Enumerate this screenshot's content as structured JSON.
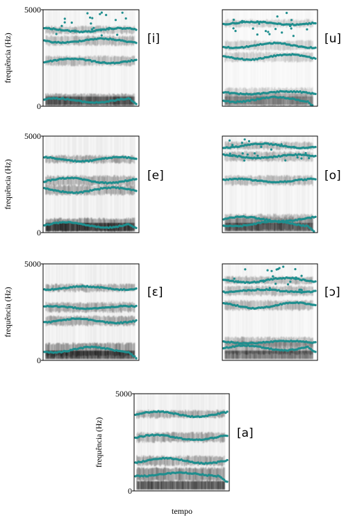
{
  "figure": {
    "xlabel": "tempo"
  },
  "chart_data": [
    {
      "type": "scatter",
      "vowel": "[i]",
      "xlabel": "",
      "ylabel": "frequência (Hz)",
      "yticks": [
        "0",
        "5000"
      ],
      "ylim": [
        0,
        5000
      ],
      "formants_hz": [
        300,
        2350,
        3400,
        3950
      ],
      "darkness": "medium",
      "formant_color": "#1f8e8e"
    },
    {
      "type": "scatter",
      "vowel": "[u]",
      "xlabel": "",
      "ylabel": "",
      "yticks": [],
      "ylim": [
        0,
        5000
      ],
      "formants_hz": [
        350,
        700,
        2550,
        3150,
        4300
      ],
      "darkness": "light",
      "formant_color": "#1f8e8e"
    },
    {
      "type": "scatter",
      "vowel": "[e]",
      "xlabel": "",
      "ylabel": "frequência (Hz)",
      "yticks": [
        "0",
        "5000"
      ],
      "ylim": [
        0,
        5000
      ],
      "formants_hz": [
        400,
        2200,
        2700,
        3800
      ],
      "darkness": "dark",
      "formant_color": "#1f8e8e"
    },
    {
      "type": "scatter",
      "vowel": "[o]",
      "xlabel": "",
      "ylabel": "",
      "yticks": [],
      "ylim": [
        0,
        5000
      ],
      "formants_hz": [
        450,
        700,
        2700,
        3950,
        4500
      ],
      "darkness": "medium",
      "formant_color": "#1f8e8e"
    },
    {
      "type": "scatter",
      "vowel": "[ε]",
      "xlabel": "",
      "ylabel": "frequência (Hz)",
      "yticks": [
        "0",
        "5000"
      ],
      "ylim": [
        0,
        5000
      ],
      "formants_hz": [
        550,
        2050,
        2750,
        3750
      ],
      "darkness": "dark",
      "formant_color": "#1f8e8e"
    },
    {
      "type": "scatter",
      "vowel": "[ɔ]",
      "xlabel": "",
      "ylabel": "",
      "yticks": [],
      "ylim": [
        0,
        5000
      ],
      "formants_hz": [
        650,
        950,
        2850,
        3600,
        4150
      ],
      "darkness": "medium",
      "formant_color": "#1f8e8e"
    },
    {
      "type": "scatter",
      "vowel": "[a]",
      "xlabel": "tempo",
      "ylabel": "frequência (Hz)",
      "yticks": [
        "0",
        "5000"
      ],
      "ylim": [
        0,
        5000
      ],
      "formants_hz": [
        850,
        1550,
        2750,
        3950
      ],
      "darkness": "dark",
      "formant_color": "#1f8e8e"
    }
  ]
}
